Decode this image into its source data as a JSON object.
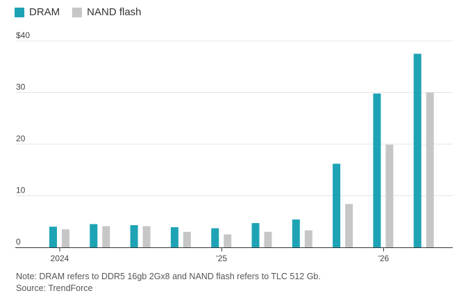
{
  "legend": {
    "dram": "DRAM",
    "nand": "NAND flash"
  },
  "colors": {
    "dram": "#1ea3b5",
    "nand": "#c6c6c6",
    "grid": "#e4e4e4",
    "axis": "#555555"
  },
  "notes": {
    "note": "Note: DRAM refers to DDR5 16gb 2Gx8 and NAND flash refers to TLC 512 Gb.",
    "source": "Source: TrendForce"
  },
  "chart_data": {
    "type": "bar",
    "title": "",
    "xlabel": "",
    "ylabel": "",
    "ylim": [
      0,
      40
    ],
    "y_ticks": [
      0,
      10,
      20,
      30,
      40
    ],
    "y_tick_labels": [
      "0",
      "10",
      "20",
      "30",
      "$40"
    ],
    "x_tick_labels": [
      {
        "index": 0,
        "label": "2024"
      },
      {
        "index": 4,
        "label": "'25"
      },
      {
        "index": 8,
        "label": "'26"
      }
    ],
    "grid": true,
    "legend_position": "top-left",
    "series": [
      {
        "name": "DRAM",
        "values": [
          4.0,
          4.5,
          4.3,
          3.9,
          3.7,
          4.7,
          5.4,
          16.2,
          29.8,
          37.5
        ]
      },
      {
        "name": "NAND flash",
        "values": [
          3.5,
          4.1,
          4.1,
          3.0,
          2.5,
          3.0,
          3.3,
          8.4,
          19.9,
          30.0
        ]
      }
    ]
  }
}
